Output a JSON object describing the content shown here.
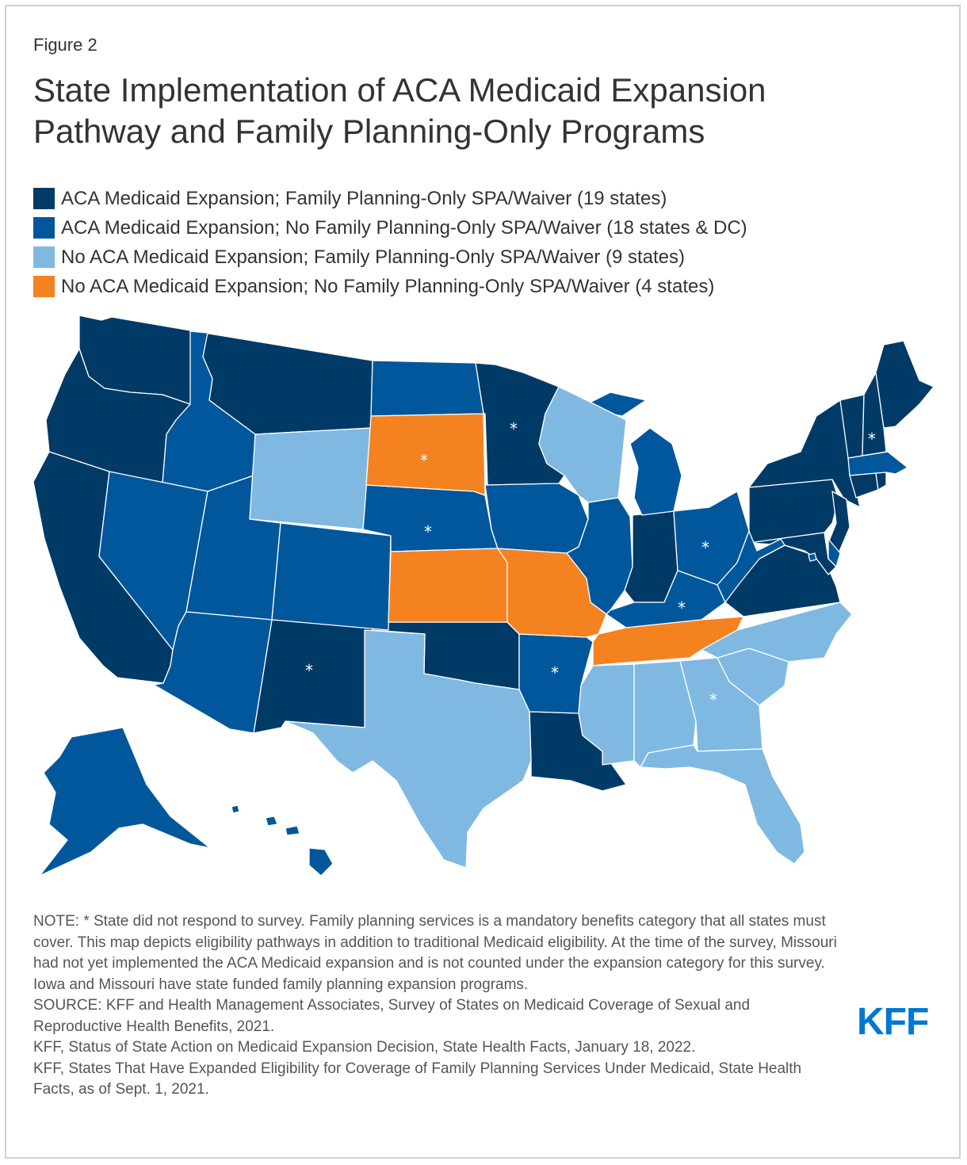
{
  "figure_label": "Figure 2",
  "title_line1": "State Implementation of ACA Medicaid Expansion",
  "title_line2": "Pathway and Family Planning-Only Programs",
  "colors": {
    "cat1": "#003a66",
    "cat2": "#00579c",
    "cat3": "#7fb9e2",
    "cat4": "#f48221",
    "kff_blue": "#0077d0"
  },
  "legend": [
    {
      "label": "ACA Medicaid Expansion; Family Planning-Only SPA/Waiver (19 states)",
      "color": "#003a66"
    },
    {
      "label": "ACA Medicaid Expansion; No Family Planning-Only SPA/Waiver (18 states & DC)",
      "color": "#00579c"
    },
    {
      "label": "No ACA Medicaid Expansion; Family Planning-Only SPA/Waiver (9 states)",
      "color": "#7fb9e2"
    },
    {
      "label": "No ACA Medicaid Expansion; No Family Planning-Only SPA/Waiver (4 states)",
      "color": "#f48221"
    }
  ],
  "map": {
    "marker": "*",
    "states": [
      {
        "state": "WA",
        "category": 1
      },
      {
        "state": "OR",
        "category": 1
      },
      {
        "state": "CA",
        "category": 1
      },
      {
        "state": "MT",
        "category": 1
      },
      {
        "state": "NM",
        "category": 1,
        "no_response": true
      },
      {
        "state": "OK",
        "category": 1
      },
      {
        "state": "MN",
        "category": 1,
        "no_response": true
      },
      {
        "state": "LA",
        "category": 1
      },
      {
        "state": "IN",
        "category": 1
      },
      {
        "state": "VA",
        "category": 1
      },
      {
        "state": "PA",
        "category": 1
      },
      {
        "state": "NY",
        "category": 1
      },
      {
        "state": "NJ",
        "category": 1
      },
      {
        "state": "CT",
        "category": 1
      },
      {
        "state": "RI",
        "category": 1
      },
      {
        "state": "VT",
        "category": 1
      },
      {
        "state": "NH",
        "category": 1,
        "no_response": true
      },
      {
        "state": "ME",
        "category": 1
      },
      {
        "state": "MD",
        "category": 1
      },
      {
        "state": "ID",
        "category": 2
      },
      {
        "state": "NV",
        "category": 2
      },
      {
        "state": "UT",
        "category": 2
      },
      {
        "state": "AZ",
        "category": 2
      },
      {
        "state": "CO",
        "category": 2
      },
      {
        "state": "ND",
        "category": 2
      },
      {
        "state": "NE",
        "category": 2,
        "no_response": true
      },
      {
        "state": "IA",
        "category": 2
      },
      {
        "state": "IL",
        "category": 2
      },
      {
        "state": "MI",
        "category": 2
      },
      {
        "state": "OH",
        "category": 2,
        "no_response": true
      },
      {
        "state": "KY",
        "category": 2,
        "no_response": true
      },
      {
        "state": "WV",
        "category": 2
      },
      {
        "state": "AR",
        "category": 2,
        "no_response": true
      },
      {
        "state": "MA",
        "category": 2
      },
      {
        "state": "DE",
        "category": 2
      },
      {
        "state": "DC",
        "category": 2
      },
      {
        "state": "AK",
        "category": 2
      },
      {
        "state": "HI",
        "category": 2
      },
      {
        "state": "WY",
        "category": 3
      },
      {
        "state": "TX",
        "category": 3
      },
      {
        "state": "WI",
        "category": 3
      },
      {
        "state": "MS",
        "category": 3
      },
      {
        "state": "AL",
        "category": 3
      },
      {
        "state": "GA",
        "category": 3,
        "no_response": true
      },
      {
        "state": "FL",
        "category": 3
      },
      {
        "state": "SC",
        "category": 3
      },
      {
        "state": "NC",
        "category": 3
      },
      {
        "state": "SD",
        "category": 4,
        "no_response": true
      },
      {
        "state": "KS",
        "category": 4
      },
      {
        "state": "MO",
        "category": 4
      },
      {
        "state": "TN",
        "category": 4
      }
    ]
  },
  "notes": [
    "NOTE: * State did not respond to survey. Family planning services is a mandatory benefits category that all states must cover. This map depicts eligibility pathways in addition to traditional Medicaid eligibility. At the time of the survey, Missouri had not yet implemented the ACA Medicaid expansion and is not counted under the expansion category for this survey. Iowa and Missouri have state funded family planning expansion programs.",
    "SOURCE: KFF and Health Management Associates, Survey of States on Medicaid Coverage of Sexual and Reproductive Health Benefits, 2021.",
    "KFF, Status of State Action on Medicaid Expansion Decision, State Health Facts, January 18, 2022.",
    "KFF, States That Have Expanded Eligibility for Coverage of Family Planning Services Under Medicaid, State Health Facts, as of Sept. 1, 2021."
  ],
  "logo_text": "KFF"
}
